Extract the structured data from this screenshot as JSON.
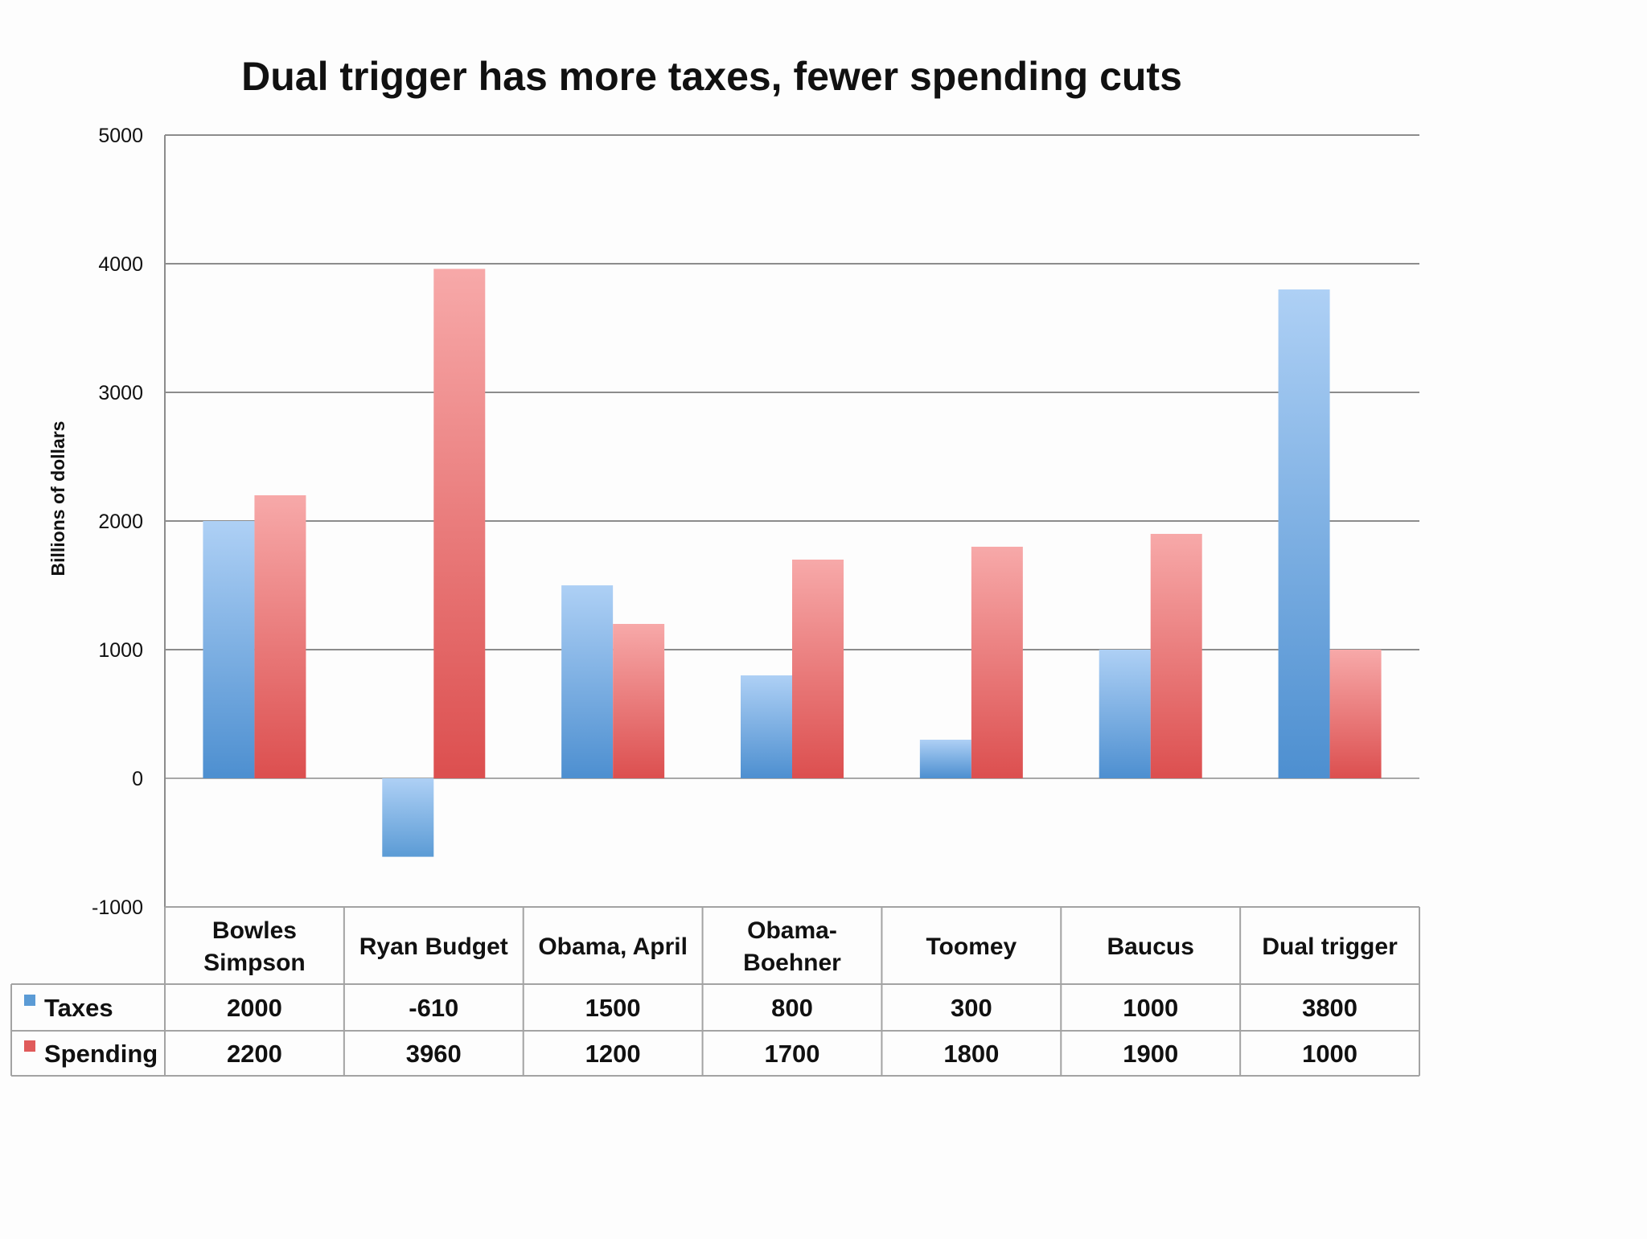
{
  "chart_data": {
    "type": "bar",
    "title": "Dual trigger has more taxes, fewer spending cuts",
    "xlabel": "",
    "ylabel": "Billions of dollars",
    "ylim": [
      -1000,
      5000
    ],
    "yticks": [
      5000,
      4000,
      3000,
      2000,
      1000,
      0,
      -1000
    ],
    "grid": true,
    "categories": [
      [
        "Bowles",
        "Simpson"
      ],
      [
        "Ryan Budget"
      ],
      [
        "Obama, April"
      ],
      [
        "Obama-",
        "Boehner"
      ],
      [
        "Toomey"
      ],
      [
        "Baucus"
      ],
      [
        "Dual trigger"
      ]
    ],
    "series": [
      {
        "name": "Taxes",
        "color": "#5b9bd5",
        "values": [
          2000,
          -610,
          1500,
          800,
          300,
          1000,
          3800
        ]
      },
      {
        "name": "Spending",
        "color": "#e05a5a",
        "values": [
          2200,
          3960,
          1200,
          1700,
          1800,
          1900,
          1000
        ]
      }
    ],
    "legend": "data table"
  }
}
